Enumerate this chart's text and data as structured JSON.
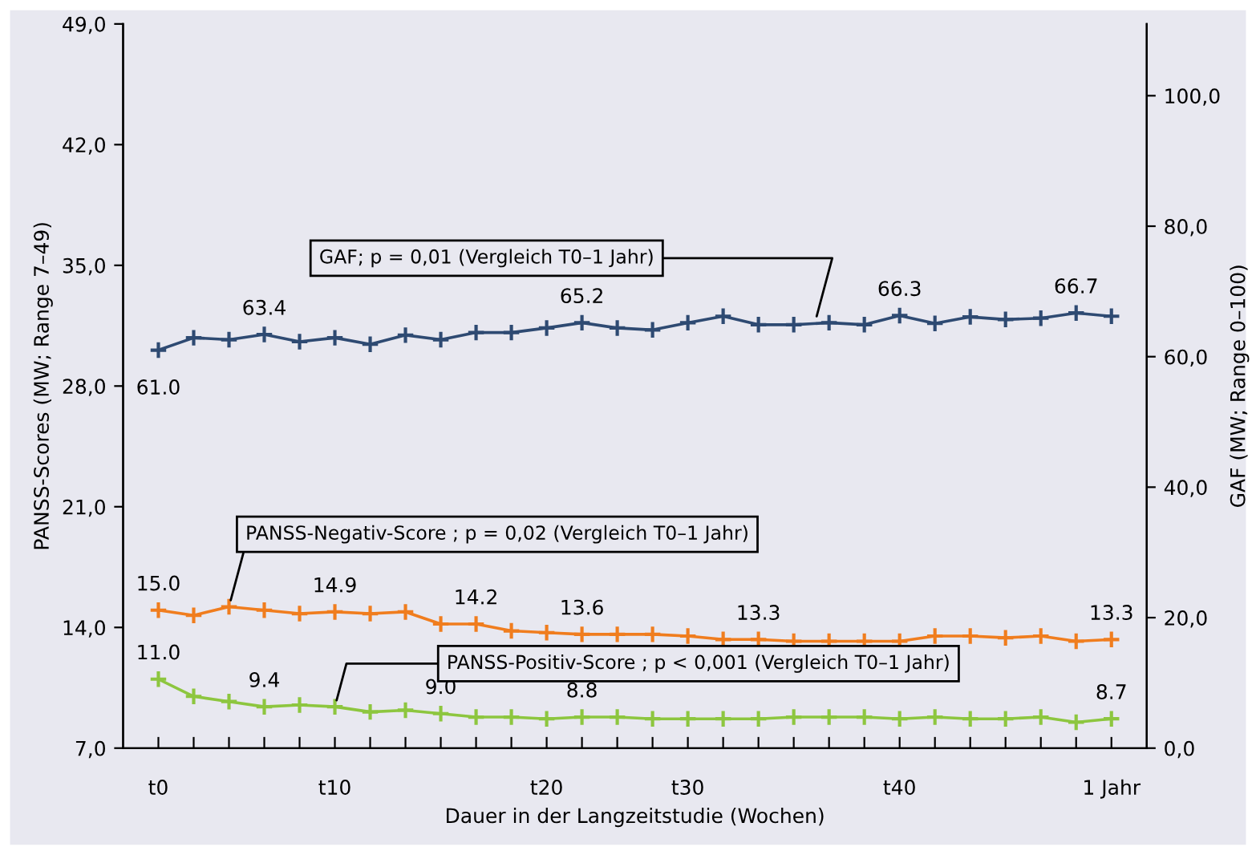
{
  "chart_data": {
    "type": "line",
    "xlabel": "Dauer in der Langzeitstudie (Wochen)",
    "ylabel": "PANSS-Scores (MW; Range 7–49)",
    "y2label": "GAF (MW; Range 0–100)",
    "categories": [
      "t0",
      null,
      null,
      null,
      null,
      "t10",
      null,
      null,
      null,
      null,
      null,
      "t20",
      null,
      null,
      null,
      "t30",
      null,
      null,
      null,
      null,
      null,
      "t40",
      null,
      null,
      null,
      null,
      null,
      "1 Jahr"
    ],
    "ylim": [
      7,
      49
    ],
    "yticks": [
      {
        "value": 7,
        "label": "7,0"
      },
      {
        "value": 14,
        "label": "14,0"
      },
      {
        "value": 21,
        "label": "21,0"
      },
      {
        "value": 28,
        "label": "28,0"
      },
      {
        "value": 35,
        "label": "35,0"
      },
      {
        "value": 42,
        "label": "42,0"
      },
      {
        "value": 49,
        "label": "49,0"
      }
    ],
    "y2lim": [
      0,
      111
    ],
    "y2ticks": [
      {
        "value": 0,
        "label": "0,0"
      },
      {
        "value": 20,
        "label": "20,0"
      },
      {
        "value": 40,
        "label": "40,0"
      },
      {
        "value": 60,
        "label": "60,0"
      },
      {
        "value": 80,
        "label": "80,0"
      },
      {
        "value": 100,
        "label": "100,0"
      }
    ],
    "grid": false,
    "legend": false,
    "marker": "cross",
    "line_style": "solid",
    "series": [
      {
        "name": "GAF; p = 0,01 (Vergleich T0–1 Jahr)",
        "color": "#2e4a72",
        "axis": "y2",
        "values": [
          61.0,
          62.9,
          62.6,
          63.4,
          62.3,
          62.9,
          61.9,
          63.3,
          62.6,
          63.7,
          63.7,
          64.4,
          65.2,
          64.4,
          64.1,
          65.2,
          66.2,
          64.9,
          64.9,
          65.2,
          64.9,
          66.3,
          65.1,
          66.1,
          65.7,
          65.9,
          66.7,
          66.2
        ],
        "value_labels": [
          "61.0",
          null,
          null,
          "63.4",
          null,
          null,
          null,
          null,
          null,
          null,
          null,
          null,
          "65.2",
          null,
          null,
          null,
          null,
          null,
          null,
          null,
          null,
          "66.3",
          null,
          null,
          null,
          null,
          "66.7",
          null
        ]
      },
      {
        "name": "PANSS-Negativ-Score ; p = 0,02 (Vergleich T0–1 Jahr)",
        "color": "#f07d1e",
        "values": [
          15.0,
          14.7,
          15.2,
          15.0,
          14.8,
          14.9,
          14.8,
          14.9,
          14.2,
          14.2,
          13.8,
          13.7,
          13.6,
          13.6,
          13.6,
          13.5,
          13.3,
          13.3,
          13.2,
          13.2,
          13.2,
          13.2,
          13.5,
          13.5,
          13.4,
          13.5,
          13.2,
          13.3
        ],
        "value_labels": [
          "15.0",
          null,
          null,
          null,
          null,
          "14.9",
          null,
          null,
          null,
          "14.2",
          null,
          null,
          "13.6",
          null,
          null,
          null,
          null,
          "13.3",
          null,
          null,
          null,
          null,
          null,
          null,
          null,
          null,
          null,
          "13.3"
        ]
      },
      {
        "name": "PANSS-Positiv-Score ; p < 0,001 (Vergleich T0–1 Jahr)",
        "color": "#8dc63f",
        "values": [
          11.0,
          10.0,
          9.7,
          9.4,
          9.5,
          9.4,
          9.1,
          9.2,
          9.0,
          8.8,
          8.8,
          8.7,
          8.8,
          8.8,
          8.7,
          8.7,
          8.7,
          8.7,
          8.8,
          8.8,
          8.8,
          8.7,
          8.8,
          8.7,
          8.7,
          8.8,
          8.5,
          8.7
        ],
        "value_labels": [
          "11.0",
          null,
          null,
          "9.4",
          null,
          null,
          null,
          null,
          "9.0",
          null,
          null,
          null,
          "8.8",
          null,
          null,
          null,
          null,
          null,
          null,
          null,
          null,
          null,
          null,
          null,
          null,
          null,
          null,
          "8.7"
        ]
      }
    ]
  }
}
